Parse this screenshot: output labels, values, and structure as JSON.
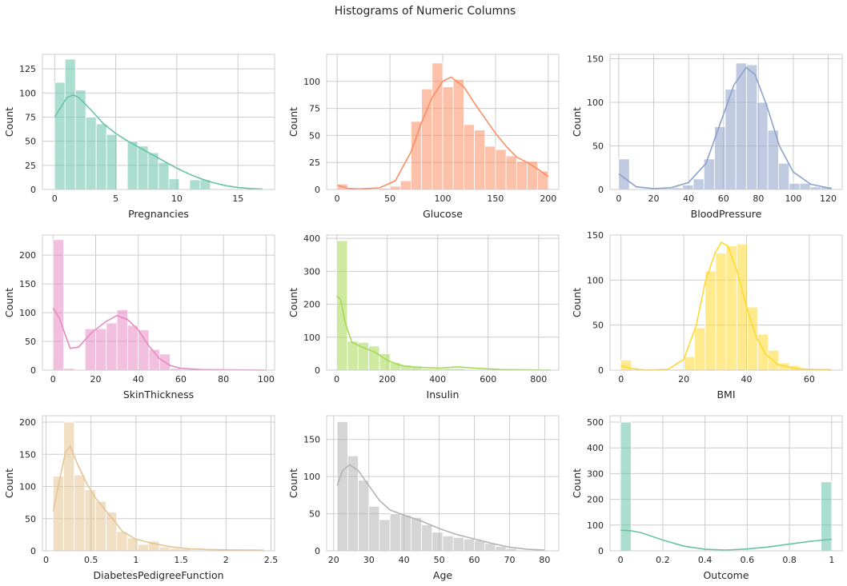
{
  "title": "Histograms of Numeric Columns",
  "chart_data": [
    {
      "type": "bar",
      "xlabel": "Pregnancies",
      "ylabel": "Count",
      "xlim": [
        -1,
        18
      ],
      "ylim": [
        0,
        140
      ],
      "xticks": [
        0,
        5,
        10,
        15
      ],
      "yticks": [
        0,
        25,
        50,
        75,
        100,
        125
      ],
      "grid": true,
      "color": "#66c2a5",
      "bar_alpha": 0.55,
      "bin_start": 0,
      "bin_width": 0.85,
      "counts": [
        111,
        135,
        103,
        75,
        68,
        57,
        0,
        50,
        45,
        38,
        28,
        11,
        0,
        10,
        10,
        0,
        0,
        0,
        0,
        0
      ],
      "kde": [
        [
          0,
          75
        ],
        [
          1,
          95
        ],
        [
          1.5,
          98
        ],
        [
          2,
          95
        ],
        [
          3,
          82
        ],
        [
          4,
          68
        ],
        [
          5,
          58
        ],
        [
          6,
          50
        ],
        [
          7,
          43
        ],
        [
          8,
          36
        ],
        [
          9,
          29
        ],
        [
          10,
          22
        ],
        [
          11,
          16
        ],
        [
          12,
          11
        ],
        [
          13,
          7
        ],
        [
          14,
          4
        ],
        [
          15,
          2
        ],
        [
          16,
          1
        ],
        [
          17,
          0.5
        ]
      ]
    },
    {
      "type": "bar",
      "xlabel": "Glucose",
      "ylabel": "Count",
      "xlim": [
        -10,
        210
      ],
      "ylim": [
        0,
        125
      ],
      "xticks": [
        0,
        50,
        100,
        150,
        200
      ],
      "yticks": [
        0,
        25,
        50,
        75,
        100
      ],
      "grid": true,
      "color": "#fc8d62",
      "bar_alpha": 0.55,
      "bin_start": 0,
      "bin_width": 10,
      "counts": [
        5,
        0,
        0,
        0,
        1,
        3,
        8,
        63,
        93,
        117,
        95,
        102,
        60,
        55,
        40,
        37,
        31,
        26,
        26,
        17
      ],
      "kde": [
        [
          0,
          4
        ],
        [
          10,
          1
        ],
        [
          20,
          0.5
        ],
        [
          40,
          1.5
        ],
        [
          55,
          8
        ],
        [
          70,
          35
        ],
        [
          80,
          62
        ],
        [
          90,
          85
        ],
        [
          100,
          100
        ],
        [
          108,
          104
        ],
        [
          120,
          95
        ],
        [
          130,
          80
        ],
        [
          140,
          66
        ],
        [
          150,
          52
        ],
        [
          160,
          40
        ],
        [
          170,
          30
        ],
        [
          180,
          25
        ],
        [
          190,
          19
        ],
        [
          200,
          12
        ]
      ]
    },
    {
      "type": "bar",
      "xlabel": "BloodPressure",
      "ylabel": "Count",
      "xlim": [
        -5,
        128
      ],
      "ylim": [
        0,
        155
      ],
      "xticks": [
        0,
        20,
        40,
        60,
        80,
        100,
        120
      ],
      "yticks": [
        0,
        50,
        100,
        150
      ],
      "grid": true,
      "color": "#8da0cb",
      "bar_alpha": 0.55,
      "bin_start": 0,
      "bin_width": 6.1,
      "counts": [
        35,
        0,
        0,
        1,
        1,
        2,
        5,
        12,
        35,
        72,
        115,
        145,
        143,
        100,
        68,
        30,
        7,
        7,
        3,
        3
      ],
      "kde": [
        [
          0,
          18
        ],
        [
          4,
          12
        ],
        [
          10,
          3
        ],
        [
          20,
          1
        ],
        [
          30,
          2
        ],
        [
          40,
          8
        ],
        [
          50,
          30
        ],
        [
          58,
          75
        ],
        [
          66,
          120
        ],
        [
          73,
          140
        ],
        [
          78,
          132
        ],
        [
          85,
          95
        ],
        [
          92,
          50
        ],
        [
          100,
          20
        ],
        [
          110,
          6
        ],
        [
          122,
          1
        ]
      ]
    },
    {
      "type": "bar",
      "xlabel": "SkinThickness",
      "ylabel": "Count",
      "xlim": [
        -5,
        104
      ],
      "ylim": [
        0,
        235
      ],
      "xticks": [
        0,
        20,
        40,
        60,
        80,
        100
      ],
      "yticks": [
        0,
        50,
        100,
        150,
        200
      ],
      "grid": true,
      "color": "#e78ac3",
      "bar_alpha": 0.55,
      "bin_start": 0,
      "bin_width": 5,
      "counts": [
        227,
        3,
        0,
        72,
        72,
        82,
        105,
        78,
        70,
        36,
        28,
        3,
        1,
        1,
        0,
        0,
        0,
        0,
        0,
        1
      ],
      "kde": [
        [
          0,
          108
        ],
        [
          3,
          90
        ],
        [
          8,
          38
        ],
        [
          12,
          40
        ],
        [
          18,
          65
        ],
        [
          25,
          85
        ],
        [
          30,
          95
        ],
        [
          35,
          88
        ],
        [
          40,
          70
        ],
        [
          45,
          42
        ],
        [
          50,
          20
        ],
        [
          55,
          8
        ],
        [
          60,
          3
        ],
        [
          70,
          1
        ],
        [
          80,
          0.5
        ],
        [
          100,
          0
        ]
      ]
    },
    {
      "type": "bar",
      "xlabel": "Insulin",
      "ylabel": "Count",
      "xlim": [
        -40,
        880
      ],
      "ylim": [
        0,
        410
      ],
      "xticks": [
        0,
        200,
        400,
        600,
        800
      ],
      "yticks": [
        0,
        100,
        200,
        300,
        400
      ],
      "grid": true,
      "color": "#a6d854",
      "bar_alpha": 0.55,
      "bin_start": 0,
      "bin_width": 42.3,
      "counts": [
        393,
        88,
        84,
        73,
        50,
        23,
        15,
        12,
        4,
        4,
        5,
        5,
        2,
        2,
        1,
        1,
        0,
        0,
        1,
        1
      ],
      "kde": [
        [
          0,
          225
        ],
        [
          15,
          215
        ],
        [
          35,
          140
        ],
        [
          60,
          85
        ],
        [
          100,
          70
        ],
        [
          150,
          55
        ],
        [
          200,
          30
        ],
        [
          250,
          15
        ],
        [
          300,
          10
        ],
        [
          400,
          6
        ],
        [
          480,
          10
        ],
        [
          550,
          6
        ],
        [
          650,
          2
        ],
        [
          846,
          0
        ]
      ]
    },
    {
      "type": "bar",
      "xlabel": "BMI",
      "ylabel": "Count",
      "xlim": [
        -3.5,
        70.5
      ],
      "ylim": [
        0,
        150
      ],
      "xticks": [
        0,
        20,
        40,
        60
      ],
      "yticks": [
        0,
        50,
        100,
        150
      ],
      "grid": true,
      "color": "#ffd92f",
      "bar_alpha": 0.55,
      "bin_start": 0,
      "bin_width": 3.355,
      "counts": [
        11,
        0,
        0,
        0,
        0,
        1,
        15,
        47,
        110,
        130,
        138,
        140,
        70,
        40,
        22,
        8,
        5,
        2,
        0,
        2
      ],
      "kde": [
        [
          0,
          5
        ],
        [
          3,
          2
        ],
        [
          8,
          0
        ],
        [
          15,
          1
        ],
        [
          20,
          12
        ],
        [
          24,
          50
        ],
        [
          27,
          100
        ],
        [
          30,
          130
        ],
        [
          32,
          142
        ],
        [
          34,
          138
        ],
        [
          37,
          110
        ],
        [
          40,
          70
        ],
        [
          43,
          38
        ],
        [
          46,
          18
        ],
        [
          50,
          6
        ],
        [
          55,
          2
        ],
        [
          60,
          1
        ],
        [
          67,
          0
        ]
      ]
    },
    {
      "type": "bar",
      "xlabel": "DiabetesPedigreeFunction",
      "ylabel": "Count",
      "xlim": [
        -0.04,
        2.54
      ],
      "ylim": [
        0,
        210
      ],
      "xticks": [
        0.0,
        0.5,
        1.0,
        1.5,
        2.0,
        2.5
      ],
      "yticks": [
        0,
        50,
        100,
        150,
        200
      ],
      "grid": true,
      "color": "#e5c494",
      "bar_alpha": 0.55,
      "bin_start": 0.078,
      "bin_width": 0.118,
      "counts": [
        116,
        200,
        118,
        95,
        77,
        60,
        30,
        20,
        10,
        15,
        6,
        4,
        3,
        1,
        1,
        1,
        0,
        1,
        1,
        1
      ],
      "kde": [
        [
          0.08,
          62
        ],
        [
          0.15,
          110
        ],
        [
          0.22,
          155
        ],
        [
          0.27,
          162
        ],
        [
          0.35,
          135
        ],
        [
          0.45,
          105
        ],
        [
          0.55,
          82
        ],
        [
          0.65,
          65
        ],
        [
          0.75,
          48
        ],
        [
          0.85,
          30
        ],
        [
          1.0,
          18
        ],
        [
          1.2,
          11
        ],
        [
          1.4,
          6
        ],
        [
          1.6,
          3
        ],
        [
          1.8,
          2
        ],
        [
          2.0,
          1.5
        ],
        [
          2.42,
          1
        ]
      ]
    },
    {
      "type": "bar",
      "xlabel": "Age",
      "ylabel": "Count",
      "xlim": [
        18,
        84
      ],
      "ylim": [
        0,
        182
      ],
      "xticks": [
        20,
        30,
        40,
        50,
        60,
        70,
        80
      ],
      "yticks": [
        0,
        50,
        100,
        150
      ],
      "grid": true,
      "color": "#b3b3b3",
      "bar_alpha": 0.55,
      "bin_start": 21,
      "bin_width": 3,
      "counts": [
        174,
        128,
        95,
        60,
        42,
        50,
        48,
        45,
        35,
        25,
        20,
        18,
        16,
        14,
        10,
        6,
        3,
        1,
        1,
        1
      ],
      "kde": [
        [
          21,
          88
        ],
        [
          22.5,
          108
        ],
        [
          24.5,
          116
        ],
        [
          27,
          108
        ],
        [
          30,
          88
        ],
        [
          33,
          68
        ],
        [
          36,
          55
        ],
        [
          40,
          48
        ],
        [
          45,
          40
        ],
        [
          50,
          30
        ],
        [
          55,
          22
        ],
        [
          60,
          16
        ],
        [
          65,
          10
        ],
        [
          70,
          5
        ],
        [
          75,
          2
        ],
        [
          80,
          1
        ]
      ]
    },
    {
      "type": "bar",
      "xlabel": "Outcome",
      "ylabel": "Count",
      "xlim": [
        -0.05,
        1.05
      ],
      "ylim": [
        0,
        525
      ],
      "xticks": [
        0.0,
        0.2,
        0.4,
        0.6,
        0.8,
        1.0
      ],
      "yticks": [
        0,
        100,
        200,
        300,
        400,
        500
      ],
      "grid": true,
      "color": "#66c2a5",
      "bar_alpha": 0.55,
      "bin_start": 0,
      "bin_width": 0.05,
      "counts": [
        500,
        0,
        0,
        0,
        0,
        0,
        0,
        0,
        0,
        0,
        0,
        0,
        0,
        0,
        0,
        0,
        0,
        0,
        0,
        268
      ],
      "kde": [
        [
          0,
          80
        ],
        [
          0.05,
          78
        ],
        [
          0.1,
          70
        ],
        [
          0.2,
          42
        ],
        [
          0.3,
          18
        ],
        [
          0.4,
          6
        ],
        [
          0.5,
          3
        ],
        [
          0.6,
          7
        ],
        [
          0.7,
          15
        ],
        [
          0.8,
          26
        ],
        [
          0.9,
          37
        ],
        [
          1.0,
          45
        ]
      ]
    }
  ]
}
